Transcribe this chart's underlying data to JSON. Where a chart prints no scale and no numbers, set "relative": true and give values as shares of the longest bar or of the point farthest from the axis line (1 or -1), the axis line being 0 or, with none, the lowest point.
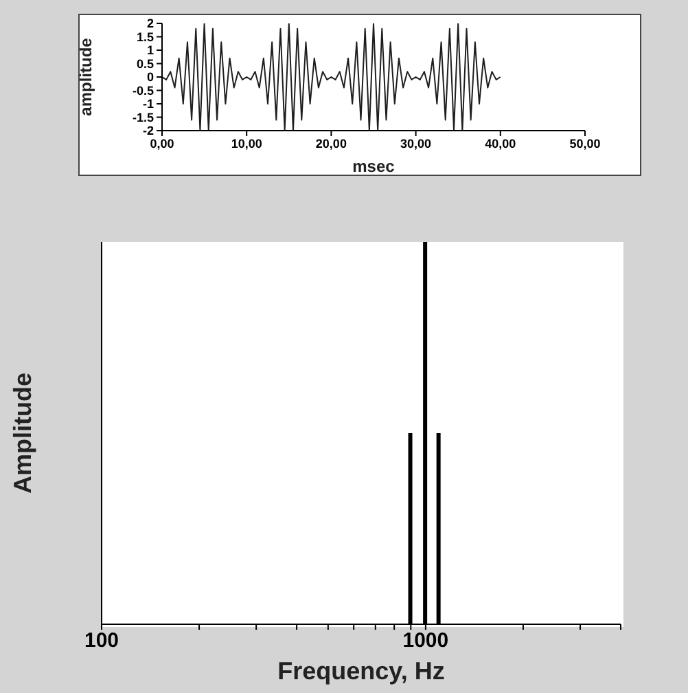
{
  "chart_data": [
    {
      "type": "line",
      "xlabel": "msec",
      "ylabel": "amplitude",
      "xlim": [
        0,
        50
      ],
      "ylim": [
        -2,
        2
      ],
      "xticks": [
        {
          "value": 0,
          "label": "0,00"
        },
        {
          "value": 10,
          "label": "10,00"
        },
        {
          "value": 20,
          "label": "20,00"
        },
        {
          "value": 30,
          "label": "30,00"
        },
        {
          "value": 40,
          "label": "40,00"
        },
        {
          "value": 50,
          "label": "50,00"
        }
      ],
      "yticks": [
        -2,
        -1.5,
        -1,
        -0.5,
        0,
        0.5,
        1,
        1.5,
        2
      ],
      "grid": false,
      "marker": "none",
      "line_style": "solid",
      "series": [
        {
          "color": "#1e1e1e",
          "x": [
            0,
            0.5,
            1,
            1.5,
            2,
            2.5,
            3,
            3.5,
            4,
            4.5,
            5,
            5.5,
            6,
            6.5,
            7,
            7.5,
            8,
            8.5,
            9,
            9.5,
            10,
            10.5,
            11,
            11.5,
            12,
            12.5,
            13,
            13.5,
            14,
            14.5,
            15,
            15.5,
            16,
            16.5,
            17,
            17.5,
            18,
            18.5,
            19,
            19.5,
            20,
            20.5,
            21,
            21.5,
            22,
            22.5,
            23,
            23.5,
            24,
            24.5,
            25,
            25.5,
            26,
            26.5,
            27,
            27.5,
            28,
            28.5,
            29,
            29.5,
            30,
            30.5,
            31,
            31.5,
            32,
            32.5,
            33,
            33.5,
            34,
            34.5,
            35,
            35.5,
            36,
            36.5,
            37,
            37.5,
            38,
            38.5,
            39,
            39.5,
            40
          ],
          "values": [
            0,
            -0.1,
            0.2,
            -0.4,
            0.7,
            -1,
            1.3,
            -1.6,
            1.8,
            -2,
            2,
            -2,
            1.8,
            -1.6,
            1.3,
            -1,
            0.7,
            -0.4,
            0.2,
            -0.1,
            0,
            -0.1,
            0.2,
            -0.4,
            0.7,
            -1,
            1.3,
            -1.6,
            1.8,
            -2,
            2,
            -2,
            1.8,
            -1.6,
            1.3,
            -1,
            0.7,
            -0.4,
            0.2,
            -0.1,
            0,
            -0.1,
            0.2,
            -0.4,
            0.7,
            -1,
            1.3,
            -1.6,
            1.8,
            -2,
            2,
            -2,
            1.8,
            -1.6,
            1.3,
            -1,
            0.7,
            -0.4,
            0.2,
            -0.1,
            0,
            -0.1,
            0.2,
            -0.4,
            0.7,
            -1,
            1.3,
            -1.6,
            1.8,
            -2,
            2,
            -2,
            1.8,
            -1.6,
            1.3,
            -1,
            0.7,
            -0.4,
            0.2,
            -0.1,
            0
          ]
        }
      ]
    },
    {
      "type": "bar",
      "xlabel": "Frequency, Hz",
      "ylabel": "Amplitude",
      "relative": true,
      "log": "x",
      "xlim": [
        100,
        4000
      ],
      "xticks": [
        100,
        {
          "value": 200,
          "label": null
        },
        {
          "value": 300,
          "label": null
        },
        {
          "value": 400,
          "label": null
        },
        {
          "value": 500,
          "label": null
        },
        {
          "value": 600,
          "label": null
        },
        {
          "value": 700,
          "label": null
        },
        {
          "value": 800,
          "label": null
        },
        {
          "value": 900,
          "label": null
        },
        1000,
        {
          "value": 2000,
          "label": null
        },
        {
          "value": 3000,
          "label": null
        },
        {
          "value": 4000,
          "label": null
        }
      ],
      "grid": false,
      "x": [
        900,
        1000,
        1100
      ],
      "values": [
        0.5,
        1,
        0.5
      ],
      "color": "#000000"
    }
  ]
}
